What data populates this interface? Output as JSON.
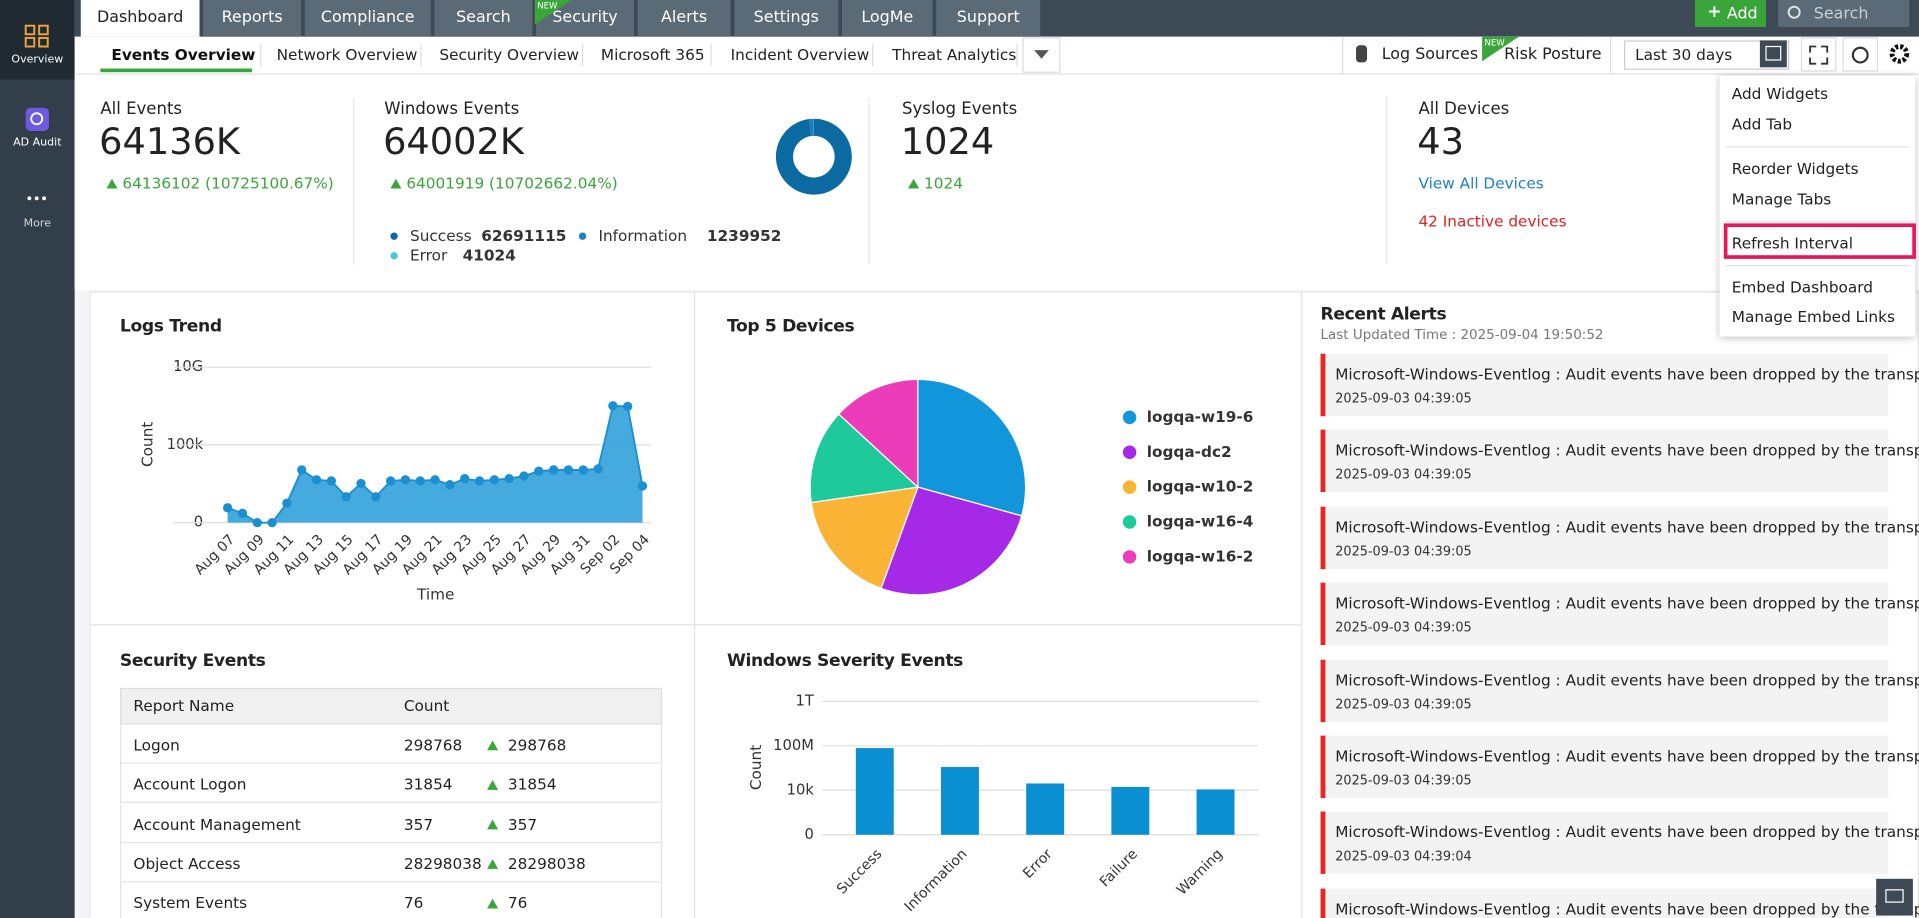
{
  "sidebar": {
    "items": [
      "Overview",
      "AD Audit",
      "More"
    ]
  },
  "top_nav": {
    "tabs": [
      "Dashboard",
      "Reports",
      "Compliance",
      "Search",
      "Security",
      "Alerts",
      "Settings",
      "LogMe",
      "Support"
    ],
    "badge": "NEW",
    "add_button": "Add",
    "search": "Search"
  },
  "sub_nav": {
    "tabs": [
      "Events Overview",
      "Network Overview",
      "Security Overview",
      "Microsoft 365",
      "Incident Overview",
      "Threat Analytics"
    ],
    "log_sources": "Log Sources",
    "risk_posture": "Risk Posture",
    "badge": "NEW",
    "date_range": "Last 30 days"
  },
  "settings_menu": {
    "items": [
      "Add Widgets",
      "Add Tab",
      "Reorder Widgets",
      "Manage Tabs",
      "Refresh Interval",
      "Embed Dashboard",
      "Manage Embed Links"
    ]
  },
  "summary": [
    {
      "title": "All Events",
      "value": "64136K",
      "change": "64136102 (10725100.67%)"
    },
    {
      "title": "Windows Events",
      "value": "64002K",
      "change": "64001919 (10702662.04%)",
      "breakdown": [
        {
          "name": "Success",
          "value": 62691115,
          "color": "#0b6aa2"
        },
        {
          "name": "Information",
          "value": 1239952,
          "color": "#1b7fc0"
        },
        {
          "name": "Error",
          "value": 41024,
          "color": "#45cfcf"
        }
      ]
    },
    {
      "title": "Syslog Events",
      "value": "1024",
      "change": "1024"
    },
    {
      "title": "All Devices",
      "value": "43",
      "link": "View All Devices",
      "alert": "42 Inactive devices"
    }
  ],
  "logs_trend": {
    "type": "area",
    "title": "Logs Trend",
    "x_label": "Time",
    "y_label": "Count",
    "scale": "symlog",
    "color": "#3ba5dc",
    "categories": [
      "Aug 07",
      null,
      "Aug 09",
      null,
      "Aug 11",
      null,
      "Aug 13",
      null,
      "Aug 15",
      null,
      "Aug 17",
      null,
      "Aug 19",
      null,
      "Aug 21",
      null,
      "Aug 23",
      null,
      "Aug 25",
      null,
      "Aug 27",
      null,
      "Aug 29",
      null,
      "Aug 31",
      null,
      "Sep 02",
      null,
      "Sep 04"
    ],
    "values": [
      8,
      3,
      0,
      0,
      17,
      2450,
      575,
      480,
      45,
      330,
      45,
      480,
      575,
      480,
      575,
      275,
      675,
      480,
      575,
      675,
      1000,
      2040,
      2450,
      2450,
      2450,
      2880,
      33000000,
      30000000,
      230
    ],
    "ylim": [
      0,
      10000000000
    ],
    "yticks": [
      0,
      {
        "value": 100000,
        "label": "100k"
      },
      {
        "value": 10000000000,
        "label": "10G"
      }
    ]
  },
  "top_devices": {
    "type": "pie",
    "title": "Top 5 Devices",
    "categories": [
      "logqa-w19-6",
      "logqa-dc2",
      "logqa-w10-2",
      "logqa-w16-4",
      "logqa-w16-2"
    ],
    "values": [
      29,
      26,
      17,
      14,
      13
    ],
    "colors": [
      "#1296db",
      "#a629e8",
      "#fbb436",
      "#1ec99c",
      "#ec3cba"
    ]
  },
  "security_events": {
    "title": "Security Events",
    "columns": [
      "Report Name",
      "Count"
    ],
    "rows": [
      [
        "Logon",
        "298768",
        "298768"
      ],
      [
        "Account Logon",
        "31854",
        "31854"
      ],
      [
        "Account Management",
        "357",
        "357"
      ],
      [
        "Object Access",
        "28298038",
        "28298038"
      ],
      [
        "System Events",
        "76",
        "76"
      ]
    ]
  },
  "severity": {
    "type": "bar",
    "title": "Windows Severity Events",
    "y_label": "Count",
    "scale": "symlog",
    "color": "#0b8fd3",
    "categories": [
      "Success",
      "Information",
      "Error",
      "Failure",
      "Warning"
    ],
    "values": [
      62691115,
      1239952,
      41024,
      20000,
      12000
    ],
    "ylim": [
      0,
      1000000000000
    ],
    "yticks": [
      0,
      {
        "value": 10000,
        "label": "10k"
      },
      {
        "value": 100000000,
        "label": "100M"
      },
      {
        "value": 1000000000000,
        "label": "1T"
      }
    ]
  },
  "recent_alerts": {
    "title": "Recent Alerts",
    "updated": "Last Updated Time : 2025-09-04 19:50:52",
    "items": [
      {
        "message": "Microsoft-Windows-Eventlog : Audit events have been dropped by the transp...",
        "time": "2025-09-03 04:39:05"
      },
      {
        "message": "Microsoft-Windows-Eventlog : Audit events have been dropped by the transp...",
        "time": "2025-09-03 04:39:05"
      },
      {
        "message": "Microsoft-Windows-Eventlog : Audit events have been dropped by the transp...",
        "time": "2025-09-03 04:39:05"
      },
      {
        "message": "Microsoft-Windows-Eventlog : Audit events have been dropped by the transp...",
        "time": "2025-09-03 04:39:05"
      },
      {
        "message": "Microsoft-Windows-Eventlog : Audit events have been dropped by the transp...",
        "time": "2025-09-03 04:39:05"
      },
      {
        "message": "Microsoft-Windows-Eventlog : Audit events have been dropped by the transp...",
        "time": "2025-09-03 04:39:05"
      },
      {
        "message": "Microsoft-Windows-Eventlog : Audit events have been dropped by the transp...",
        "time": "2025-09-03 04:39:04"
      },
      {
        "message": "Microsoft-Windows-Eventlog : Audit events have been dropped by the transp..."
      }
    ]
  }
}
